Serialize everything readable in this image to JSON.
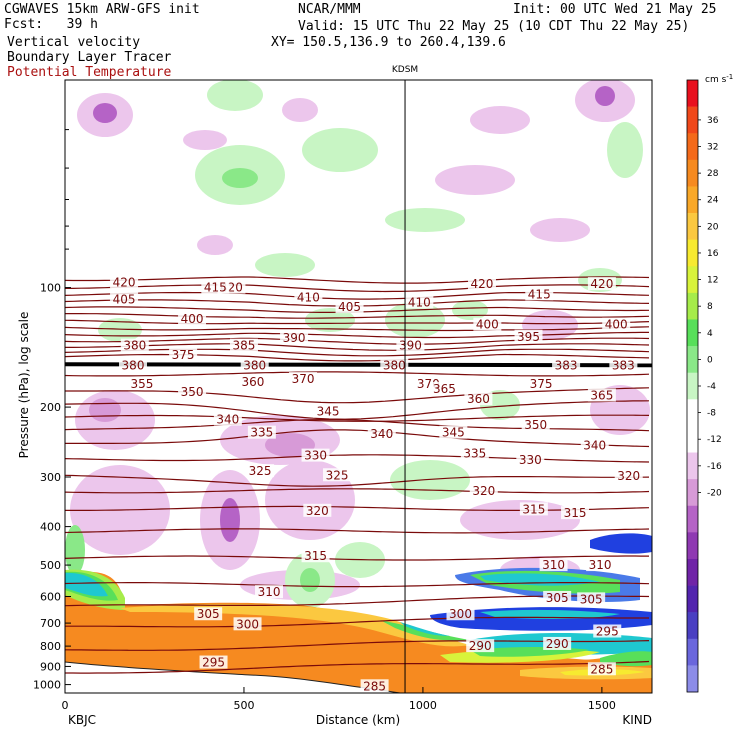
{
  "header": {
    "model": "CGWAVES 15km ARW-GFS init",
    "forecast": "Fcst:   39 h",
    "org": "NCAR/MMM",
    "init": "Init: 00 UTC Wed 21 May 25",
    "valid": "Valid: 15 UTC Thu 22 May 25 (10 CDT Thu 22 May 25)",
    "xy": "XY= 150.5,136.9 to 260.4,139.6",
    "field1": "Vertical velocity",
    "field2": "Boundary Layer Tracer",
    "field3": "Potential Temperature"
  },
  "colors": {
    "theta_contour": "#7a0a0a",
    "terrain": "#ffffff"
  },
  "chart_data": {
    "type": "heatmap",
    "title": "",
    "xlabel": "Distance (km)",
    "ylabel": "Pressure (hPa), log scale",
    "x_ticks": [
      0,
      500,
      1000,
      1500
    ],
    "x_range": [
      0,
      1640
    ],
    "y_ticks": [
      100,
      200,
      300,
      400,
      500,
      600,
      700,
      800,
      900,
      1000
    ],
    "y_range": [
      1050,
      30
    ],
    "y_scale": "log",
    "station_left": "KBJC",
    "station_right": "KIND",
    "station_mid": "KDSM",
    "station_mid_x_km": 950,
    "colorbar": {
      "units": "cm s",
      "units_exp": "-1",
      "tick_labels": [
        36,
        32,
        28,
        24,
        20,
        16,
        12,
        8,
        4,
        0,
        -4,
        -8,
        -12,
        -16,
        -20
      ],
      "colors": [
        "#e8101e",
        "#f0481a",
        "#f46a1a",
        "#f68a20",
        "#f9a828",
        "#fbc840",
        "#f7ea30",
        "#d8f33b",
        "#a6ec4a",
        "#58df5a",
        "#8ae888",
        "#c8f5c4",
        "#ffffff",
        "#ffffff",
        "#ecc6ec",
        "#d79ad7",
        "#b563c6",
        "#8f39b2",
        "#7023a7",
        "#5224ae",
        "#4a3fc2",
        "#6a66dc",
        "#8c8ce8"
      ]
    },
    "theta_labels": [
      {
        "x": 165,
        "p": 97,
        "v": "420"
      },
      {
        "x": 465,
        "p": 100,
        "v": "420"
      },
      {
        "x": 1165,
        "p": 98,
        "v": "420"
      },
      {
        "x": 1500,
        "p": 98,
        "v": "420"
      },
      {
        "x": 420,
        "p": 100,
        "v": "415"
      },
      {
        "x": 1325,
        "p": 104,
        "v": "415"
      },
      {
        "x": 165,
        "p": 107,
        "v": "405"
      },
      {
        "x": 680,
        "p": 106,
        "v": "410"
      },
      {
        "x": 990,
        "p": 109,
        "v": "410"
      },
      {
        "x": 795,
        "p": 112,
        "v": "405"
      },
      {
        "x": 355,
        "p": 120,
        "v": "400"
      },
      {
        "x": 1180,
        "p": 124,
        "v": "400"
      },
      {
        "x": 1540,
        "p": 124,
        "v": "400"
      },
      {
        "x": 640,
        "p": 134,
        "v": "390"
      },
      {
        "x": 965,
        "p": 140,
        "v": "390"
      },
      {
        "x": 1295,
        "p": 133,
        "v": "395"
      },
      {
        "x": 195,
        "p": 140,
        "v": "380"
      },
      {
        "x": 330,
        "p": 148,
        "v": "375"
      },
      {
        "x": 500,
        "p": 140,
        "v": "385"
      },
      {
        "x": 1400,
        "p": 157,
        "v": "383"
      },
      {
        "x": 1560,
        "p": 157,
        "v": "383"
      },
      {
        "x": 665,
        "p": 170,
        "v": "370"
      },
      {
        "x": 1015,
        "p": 175,
        "v": "370"
      },
      {
        "x": 1060,
        "p": 180,
        "v": "365"
      },
      {
        "x": 1500,
        "p": 187,
        "v": "365"
      },
      {
        "x": 525,
        "p": 173,
        "v": "360"
      },
      {
        "x": 1155,
        "p": 191,
        "v": "360"
      },
      {
        "x": 215,
        "p": 175,
        "v": "355"
      },
      {
        "x": 355,
        "p": 183,
        "v": "350"
      },
      {
        "x": 1330,
        "p": 175,
        "v": "375"
      },
      {
        "x": 455,
        "p": 215,
        "v": "340"
      },
      {
        "x": 735,
        "p": 205,
        "v": "345"
      },
      {
        "x": 550,
        "p": 232,
        "v": "335"
      },
      {
        "x": 885,
        "p": 234,
        "v": "340"
      },
      {
        "x": 1085,
        "p": 232,
        "v": "345"
      },
      {
        "x": 1315,
        "p": 222,
        "v": "350"
      },
      {
        "x": 1480,
        "p": 250,
        "v": "340"
      },
      {
        "x": 700,
        "p": 265,
        "v": "330"
      },
      {
        "x": 1145,
        "p": 262,
        "v": "335"
      },
      {
        "x": 1300,
        "p": 272,
        "v": "330"
      },
      {
        "x": 545,
        "p": 290,
        "v": "325"
      },
      {
        "x": 760,
        "p": 297,
        "v": "325"
      },
      {
        "x": 1170,
        "p": 325,
        "v": "320"
      },
      {
        "x": 1575,
        "p": 298,
        "v": "320"
      },
      {
        "x": 705,
        "p": 365,
        "v": "320"
      },
      {
        "x": 1310,
        "p": 362,
        "v": "315"
      },
      {
        "x": 1425,
        "p": 370,
        "v": "315"
      },
      {
        "x": 700,
        "p": 475,
        "v": "315"
      },
      {
        "x": 1365,
        "p": 500,
        "v": "310"
      },
      {
        "x": 1495,
        "p": 500,
        "v": "310"
      },
      {
        "x": 570,
        "p": 585,
        "v": "310"
      },
      {
        "x": 1375,
        "p": 605,
        "v": "305"
      },
      {
        "x": 1470,
        "p": 610,
        "v": "305"
      },
      {
        "x": 400,
        "p": 665,
        "v": "305"
      },
      {
        "x": 510,
        "p": 705,
        "v": "300"
      },
      {
        "x": 1105,
        "p": 665,
        "v": "300"
      },
      {
        "x": 1160,
        "p": 800,
        "v": "290"
      },
      {
        "x": 1375,
        "p": 790,
        "v": "290"
      },
      {
        "x": 1515,
        "p": 735,
        "v": "295"
      },
      {
        "x": 415,
        "p": 880,
        "v": "295"
      },
      {
        "x": 1500,
        "p": 915,
        "v": "285"
      },
      {
        "x": 865,
        "p": 1010,
        "v": "285"
      },
      {
        "x": 190,
        "p": 157,
        "v": "380"
      },
      {
        "x": 530,
        "p": 157,
        "v": "380"
      },
      {
        "x": 920,
        "p": 157,
        "v": "380"
      }
    ]
  }
}
